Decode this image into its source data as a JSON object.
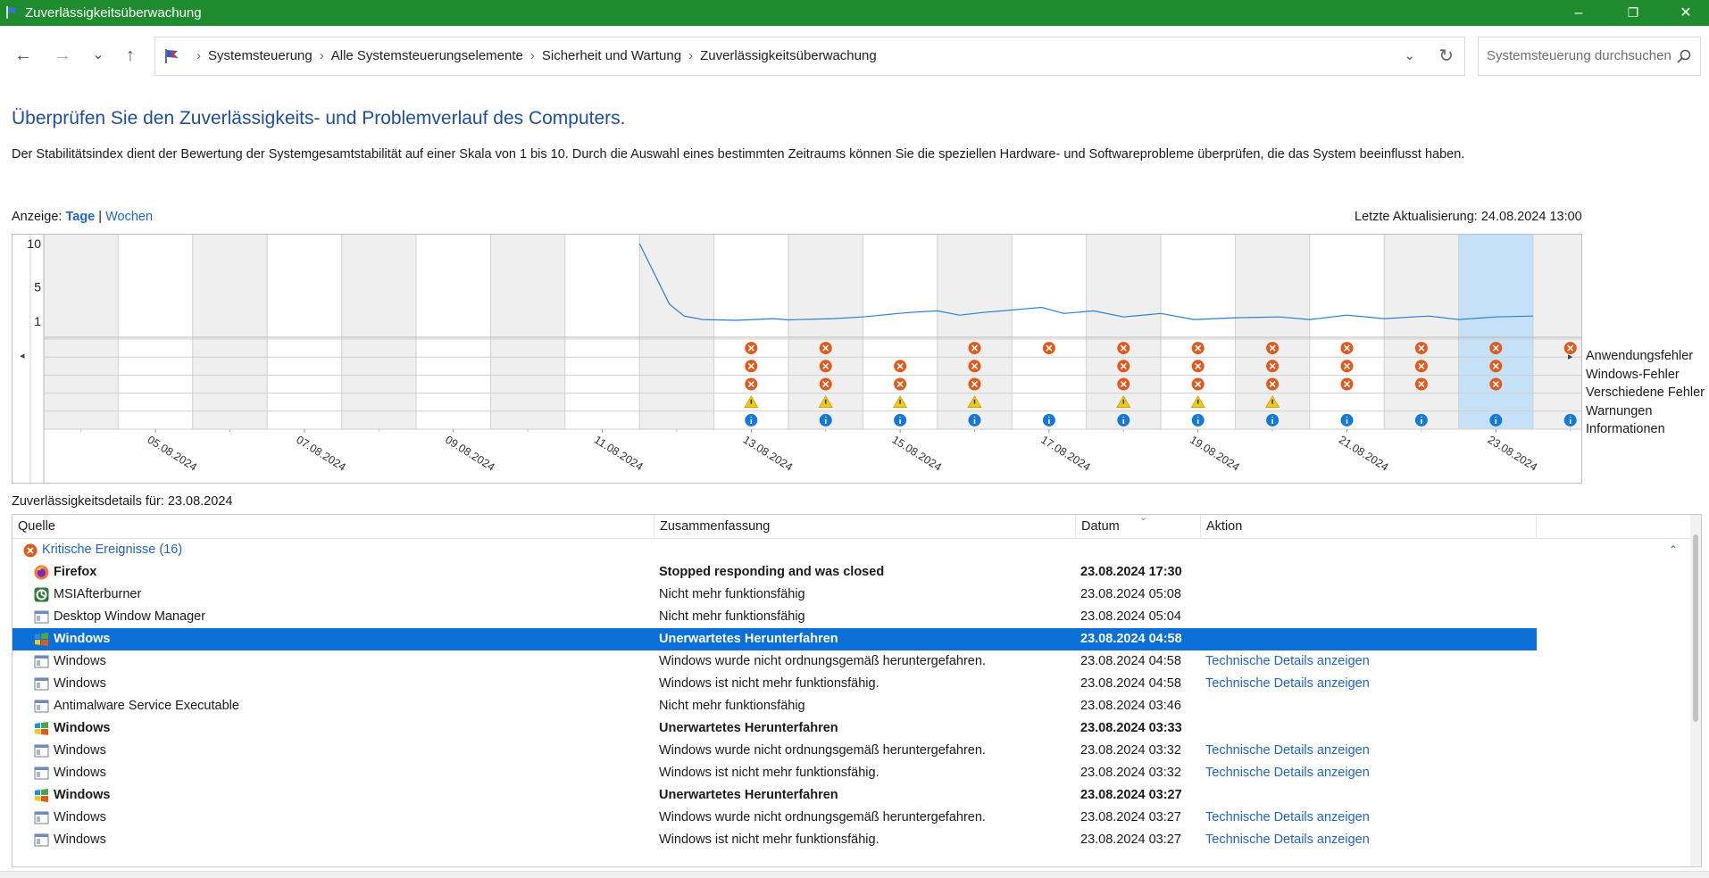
{
  "window": {
    "title": "Zuverlässigkeitsüberwachung",
    "buttons": {
      "minimize": "–",
      "maximize": "❐",
      "close": "✕"
    },
    "accent": "#1e8c2e"
  },
  "nav": {
    "back": "←",
    "forward": "→",
    "recent": "⌄",
    "up": "↑",
    "breadcrumb": [
      "Systemsteuerung",
      "Alle Systemsteuerungselemente",
      "Sicherheit und Wartung",
      "Zuverlässigkeitsüberwachung"
    ],
    "separator": "›",
    "dropdown": "⌄",
    "refresh": "↻",
    "search_placeholder": "Systemsteuerung durchsuchen"
  },
  "header": {
    "title": "Überprüfen Sie den Zuverlässigkeits- und Problemverlauf des Computers.",
    "description": "Der Stabilitätsindex dient der Bewertung der Systemgesamtstabilität auf einer Skala von 1 bis 10. Durch die Auswahl eines bestimmten Zeitraums können Sie die speziellen Hardware- und Softwareprobleme überprüfen, die das System beeinflusst haben."
  },
  "view": {
    "label": "Anzeige:",
    "option_days": "Tage",
    "divider": "|",
    "option_weeks": "Wochen",
    "selected": "Tage",
    "last_update": "Letzte Aktualisierung: 24.08.2024 13:00"
  },
  "chart_data": {
    "type": "line",
    "ylim": [
      1,
      10
    ],
    "y_ticks": [
      "10",
      "5",
      "1"
    ],
    "days": [
      "04.08.2024",
      "05.08.2024",
      "06.08.2024",
      "07.08.2024",
      "08.08.2024",
      "09.08.2024",
      "10.08.2024",
      "11.08.2024",
      "12.08.2024",
      "13.08.2024",
      "14.08.2024",
      "15.08.2024",
      "16.08.2024",
      "17.08.2024",
      "18.08.2024",
      "19.08.2024",
      "20.08.2024",
      "21.08.2024",
      "22.08.2024",
      "23.08.2024",
      "24.08.2024"
    ],
    "x_tick_labels": [
      "05.08.2024",
      "07.08.2024",
      "09.08.2024",
      "11.08.2024",
      "13.08.2024",
      "15.08.2024",
      "17.08.2024",
      "19.08.2024",
      "21.08.2024",
      "23.08.2024"
    ],
    "selected_day": "23.08.2024",
    "stability_index": [
      {
        "x": 8.0,
        "y": 10.0
      },
      {
        "x": 8.2,
        "y": 6.5
      },
      {
        "x": 8.4,
        "y": 3.0
      },
      {
        "x": 8.6,
        "y": 1.6
      },
      {
        "x": 8.85,
        "y": 1.2
      },
      {
        "x": 9.3,
        "y": 1.1
      },
      {
        "x": 9.8,
        "y": 1.3
      },
      {
        "x": 10.0,
        "y": 1.15
      },
      {
        "x": 10.6,
        "y": 1.3
      },
      {
        "x": 11.0,
        "y": 1.5
      },
      {
        "x": 11.6,
        "y": 2.0
      },
      {
        "x": 12.0,
        "y": 2.2
      },
      {
        "x": 12.3,
        "y": 1.7
      },
      {
        "x": 12.6,
        "y": 2.0
      },
      {
        "x": 13.4,
        "y": 2.6
      },
      {
        "x": 13.7,
        "y": 1.9
      },
      {
        "x": 14.1,
        "y": 2.2
      },
      {
        "x": 14.5,
        "y": 1.5
      },
      {
        "x": 15.0,
        "y": 1.9
      },
      {
        "x": 15.45,
        "y": 1.2
      },
      {
        "x": 16.0,
        "y": 1.4
      },
      {
        "x": 16.6,
        "y": 1.5
      },
      {
        "x": 17.0,
        "y": 1.2
      },
      {
        "x": 17.5,
        "y": 1.7
      },
      {
        "x": 18.0,
        "y": 1.3
      },
      {
        "x": 18.6,
        "y": 1.6
      },
      {
        "x": 19.0,
        "y": 1.2
      },
      {
        "x": 19.5,
        "y": 1.5
      },
      {
        "x": 20.0,
        "y": 1.6
      }
    ],
    "categories": [
      "Anwendungsfehler",
      "Windows-Fehler",
      "Verschiedene Fehler",
      "Warnungen",
      "Informationen"
    ],
    "events": [
      {
        "row": 0,
        "kind": "error",
        "days": [
          9,
          10,
          12,
          13,
          14,
          15,
          16,
          17,
          18,
          19,
          20
        ]
      },
      {
        "row": 1,
        "kind": "error",
        "days": [
          9,
          10,
          11,
          12,
          14,
          15,
          16,
          17,
          18,
          19
        ]
      },
      {
        "row": 2,
        "kind": "error",
        "days": [
          9,
          10,
          11,
          12,
          14,
          15,
          16,
          17,
          18,
          19
        ]
      },
      {
        "row": 3,
        "kind": "warning",
        "days": [
          9,
          10,
          11,
          12,
          14,
          15,
          16
        ]
      },
      {
        "row": 4,
        "kind": "info",
        "days": [
          9,
          10,
          11,
          12,
          13,
          14,
          15,
          16,
          17,
          18,
          19,
          20
        ]
      }
    ],
    "colors": {
      "line": "#2a7fd4",
      "error": "#e05a1c",
      "warning": "#f2c811",
      "info": "#1479d4",
      "selected": "#c5e1f7",
      "shade": "#efefef"
    }
  },
  "details": {
    "label": "Zuverlässigkeitsdetails für: 23.08.2024",
    "columns": [
      "Quelle",
      "Zusammenfassung",
      "Datum",
      "Aktion"
    ],
    "group": {
      "label": "Kritische Ereignisse (16)",
      "collapse": "⌃"
    },
    "rows": [
      {
        "icon": "firefox",
        "source": "Firefox",
        "summary": "Stopped responding and was closed",
        "date": "23.08.2024 17:30",
        "action": "",
        "bold": true,
        "selected": false
      },
      {
        "icon": "app",
        "source": "MSIAfterburner",
        "summary": "Nicht mehr funktionsfähig",
        "date": "23.08.2024 05:08",
        "action": "",
        "bold": false,
        "selected": false
      },
      {
        "icon": "window",
        "source": "Desktop Window Manager",
        "summary": "Nicht mehr funktionsfähig",
        "date": "23.08.2024 05:04",
        "action": "",
        "bold": false,
        "selected": false
      },
      {
        "icon": "windows",
        "source": "Windows",
        "summary": "Unerwartetes Herunterfahren",
        "date": "23.08.2024 04:58",
        "action": "",
        "bold": true,
        "selected": true
      },
      {
        "icon": "window",
        "source": "Windows",
        "summary": "Windows wurde nicht ordnungsgemäß heruntergefahren.",
        "date": "23.08.2024 04:58",
        "action": "Technische Details anzeigen",
        "bold": false,
        "selected": false
      },
      {
        "icon": "window",
        "source": "Windows",
        "summary": "Windows ist nicht mehr funktionsfähig.",
        "date": "23.08.2024 04:58",
        "action": "Technische Details anzeigen",
        "bold": false,
        "selected": false
      },
      {
        "icon": "window",
        "source": "Antimalware Service Executable",
        "summary": "Nicht mehr funktionsfähig",
        "date": "23.08.2024 03:46",
        "action": "",
        "bold": false,
        "selected": false
      },
      {
        "icon": "windows",
        "source": "Windows",
        "summary": "Unerwartetes Herunterfahren",
        "date": "23.08.2024 03:33",
        "action": "",
        "bold": true,
        "selected": false
      },
      {
        "icon": "window",
        "source": "Windows",
        "summary": "Windows wurde nicht ordnungsgemäß heruntergefahren.",
        "date": "23.08.2024 03:32",
        "action": "Technische Details anzeigen",
        "bold": false,
        "selected": false
      },
      {
        "icon": "window",
        "source": "Windows",
        "summary": "Windows ist nicht mehr funktionsfähig.",
        "date": "23.08.2024 03:32",
        "action": "Technische Details anzeigen",
        "bold": false,
        "selected": false
      },
      {
        "icon": "windows",
        "source": "Windows",
        "summary": "Unerwartetes Herunterfahren",
        "date": "23.08.2024 03:27",
        "action": "",
        "bold": true,
        "selected": false
      },
      {
        "icon": "window",
        "source": "Windows",
        "summary": "Windows wurde nicht ordnungsgemäß heruntergefahren.",
        "date": "23.08.2024 03:27",
        "action": "Technische Details anzeigen",
        "bold": false,
        "selected": false
      },
      {
        "icon": "window",
        "source": "Windows",
        "summary": "Windows ist nicht mehr funktionsfähig.",
        "date": "23.08.2024 03:27",
        "action": "Technische Details anzeigen",
        "bold": false,
        "selected": false
      }
    ]
  }
}
